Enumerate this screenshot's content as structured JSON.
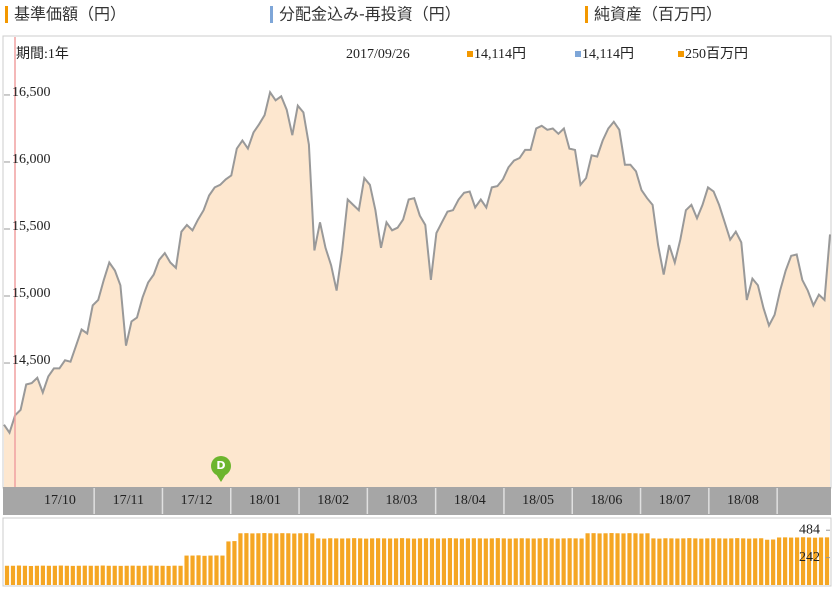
{
  "chart_data": [
    {
      "type": "area",
      "legend": [
        {
          "name": "基準価額（円）",
          "color": "#f39800"
        },
        {
          "name": "分配金込み-再投資（円）",
          "color": "#7ea6d8"
        },
        {
          "name": "純資産（百万円）",
          "color": "#f39800"
        }
      ],
      "period_label": "期間:1年",
      "date": "2017/09/26",
      "readouts": [
        {
          "label": "14,114円",
          "color": "#f39800"
        },
        {
          "label": "14,114円",
          "color": "#7ea6d8"
        },
        {
          "label": "250百万円",
          "color": "#f39800"
        }
      ],
      "xtick_labels": [
        "17/10",
        "17/11",
        "17/12",
        "18/01",
        "18/02",
        "18/03",
        "18/04",
        "18/05",
        "18/06",
        "18/07",
        "18/08"
      ],
      "annotations": [
        {
          "label": "D",
          "color": "#6cb52d"
        }
      ],
      "line_color": "#999999",
      "fill_color": "#fde7cf",
      "ylim": [
        13575,
        16925
      ],
      "yticks": [
        {
          "value": 14500,
          "label": "14,500"
        },
        {
          "value": 15000,
          "label": "15,000"
        },
        {
          "value": 15500,
          "label": "15,500"
        },
        {
          "value": 16000,
          "label": "16,000"
        },
        {
          "value": 16500,
          "label": "16,500"
        }
      ],
      "values": [
        14040,
        13980,
        14110,
        14150,
        14340,
        14350,
        14390,
        14280,
        14400,
        14460,
        14460,
        14520,
        14510,
        14630,
        14750,
        14720,
        14930,
        14970,
        15120,
        15250,
        15190,
        15080,
        14630,
        14810,
        14840,
        14990,
        15100,
        15160,
        15270,
        15320,
        15250,
        15210,
        15480,
        15530,
        15490,
        15570,
        15640,
        15750,
        15810,
        15830,
        15870,
        15900,
        16100,
        16160,
        16100,
        16220,
        16280,
        16350,
        16520,
        16460,
        16490,
        16390,
        16200,
        16420,
        16370,
        16130,
        15340,
        15550,
        15360,
        15230,
        15040,
        15340,
        15720,
        15680,
        15640,
        15880,
        15830,
        15640,
        15360,
        15550,
        15490,
        15510,
        15570,
        15720,
        15730,
        15600,
        15530,
        15120,
        15470,
        15550,
        15630,
        15640,
        15720,
        15770,
        15780,
        15660,
        15720,
        15660,
        15810,
        15820,
        15870,
        15960,
        16010,
        16030,
        16090,
        16090,
        16250,
        16270,
        16240,
        16250,
        16210,
        16250,
        16100,
        16090,
        15830,
        15880,
        16050,
        16040,
        16160,
        16250,
        16300,
        16240,
        15980,
        15980,
        15930,
        15790,
        15730,
        15680,
        15380,
        15160,
        15380,
        15250,
        15420,
        15640,
        15680,
        15580,
        15680,
        15810,
        15780,
        15680,
        15550,
        15420,
        15480,
        15400,
        14970,
        15130,
        15080,
        14910,
        14780,
        14860,
        15040,
        15190,
        15300,
        15310,
        15120,
        15040,
        14930,
        15010,
        14970,
        15460
      ]
    },
    {
      "type": "bar",
      "color": "#f5a623",
      "ylim": [
        0,
        592
      ],
      "yticks": [
        242,
        484
      ],
      "values": [
        170,
        170,
        172,
        170,
        168,
        170,
        171,
        170,
        170,
        172,
        170,
        169,
        170,
        171,
        170,
        170,
        172,
        170,
        170,
        169,
        170,
        171,
        170,
        170,
        172,
        170,
        170,
        169,
        171,
        170,
        260,
        260,
        262,
        258,
        260,
        261,
        260,
        385,
        388,
        457,
        458,
        456,
        457,
        459,
        457,
        456,
        458,
        457,
        455,
        457,
        458,
        456,
        412,
        410,
        413,
        412,
        411,
        412,
        414,
        412,
        410,
        412,
        413,
        412,
        411,
        412,
        414,
        412,
        410,
        412,
        413,
        412,
        411,
        412,
        414,
        412,
        410,
        412,
        413,
        412,
        411,
        412,
        414,
        412,
        410,
        412,
        413,
        412,
        411,
        412,
        414,
        412,
        410,
        412,
        413,
        412,
        411,
        457,
        458,
        456,
        457,
        459,
        457,
        456,
        458,
        457,
        455,
        457,
        412,
        410,
        413,
        412,
        411,
        412,
        414,
        412,
        410,
        412,
        413,
        412,
        411,
        412,
        414,
        412,
        410,
        412,
        413,
        400,
        402,
        420,
        421,
        419,
        420,
        422,
        420,
        418,
        420,
        421
      ]
    }
  ]
}
